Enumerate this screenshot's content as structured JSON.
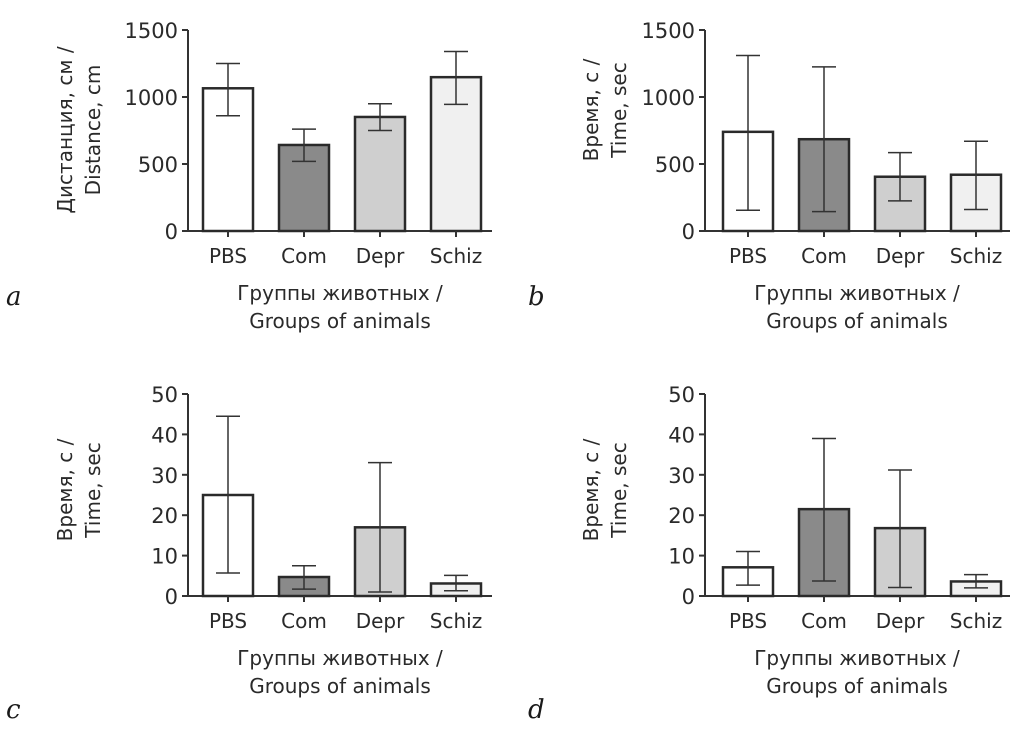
{
  "chart_data": [
    {
      "panel": "a",
      "type": "bar",
      "categories": [
        "PBS",
        "Com",
        "Depr",
        "Schiz"
      ],
      "values": [
        1065,
        642,
        851,
        1148
      ],
      "error_upper": [
        1250,
        760,
        950,
        1340
      ],
      "error_lower": [
        860,
        520,
        750,
        945
      ],
      "bar_colors": [
        "#ffffff",
        "#8a8a8a",
        "#cfcfcf",
        "#f0f0f0"
      ],
      "ylabel": [
        "Дистанция, см /",
        "Distance, cm"
      ],
      "xlabel": [
        "Группы животных /",
        "Groups of animals"
      ],
      "yticks": [
        0,
        500,
        1000,
        1500
      ],
      "ylim": [
        0,
        1500
      ],
      "grid": false
    },
    {
      "panel": "b",
      "type": "bar",
      "categories": [
        "PBS",
        "Com",
        "Depr",
        "Schiz"
      ],
      "values": [
        740,
        685,
        405,
        420
      ],
      "error_upper": [
        1310,
        1225,
        585,
        670
      ],
      "error_lower": [
        155,
        145,
        225,
        160
      ],
      "bar_colors": [
        "#ffffff",
        "#8a8a8a",
        "#cfcfcf",
        "#f0f0f0"
      ],
      "ylabel": [
        "Время, с /",
        "Time, sec"
      ],
      "xlabel": [
        "Группы животных /",
        "Groups of animals"
      ],
      "yticks": [
        0,
        500,
        1000,
        1500
      ],
      "ylim": [
        0,
        1500
      ],
      "grid": false
    },
    {
      "panel": "c",
      "type": "bar",
      "categories": [
        "PBS",
        "Com",
        "Depr",
        "Schiz"
      ],
      "values": [
        25,
        4.7,
        17,
        3.1
      ],
      "error_upper": [
        44.5,
        7.5,
        33,
        5.1
      ],
      "error_lower": [
        5.7,
        1.7,
        1,
        1.3
      ],
      "bar_colors": [
        "#ffffff",
        "#8a8a8a",
        "#cfcfcf",
        "#f0f0f0"
      ],
      "ylabel": [
        "Время, с /",
        "Time, sec"
      ],
      "xlabel": [
        "Группы животных /",
        "Groups of animals"
      ],
      "yticks": [
        0,
        10,
        20,
        30,
        40,
        50
      ],
      "ylim": [
        0,
        50
      ],
      "grid": false
    },
    {
      "panel": "d",
      "type": "bar",
      "categories": [
        "PBS",
        "Com",
        "Depr",
        "Schiz"
      ],
      "values": [
        7.1,
        21.5,
        16.8,
        3.6
      ],
      "error_upper": [
        11,
        39,
        31.2,
        5.3
      ],
      "error_lower": [
        2.7,
        3.7,
        2.1,
        2
      ],
      "bar_colors": [
        "#ffffff",
        "#8a8a8a",
        "#cfcfcf",
        "#f0f0f0"
      ],
      "ylabel": [
        "Время, с /",
        "Time, sec"
      ],
      "xlabel": [
        "Группы животных /",
        "Groups of animals"
      ],
      "yticks": [
        0,
        10,
        20,
        30,
        40,
        50
      ],
      "ylim": [
        0,
        50
      ],
      "grid": false
    }
  ]
}
